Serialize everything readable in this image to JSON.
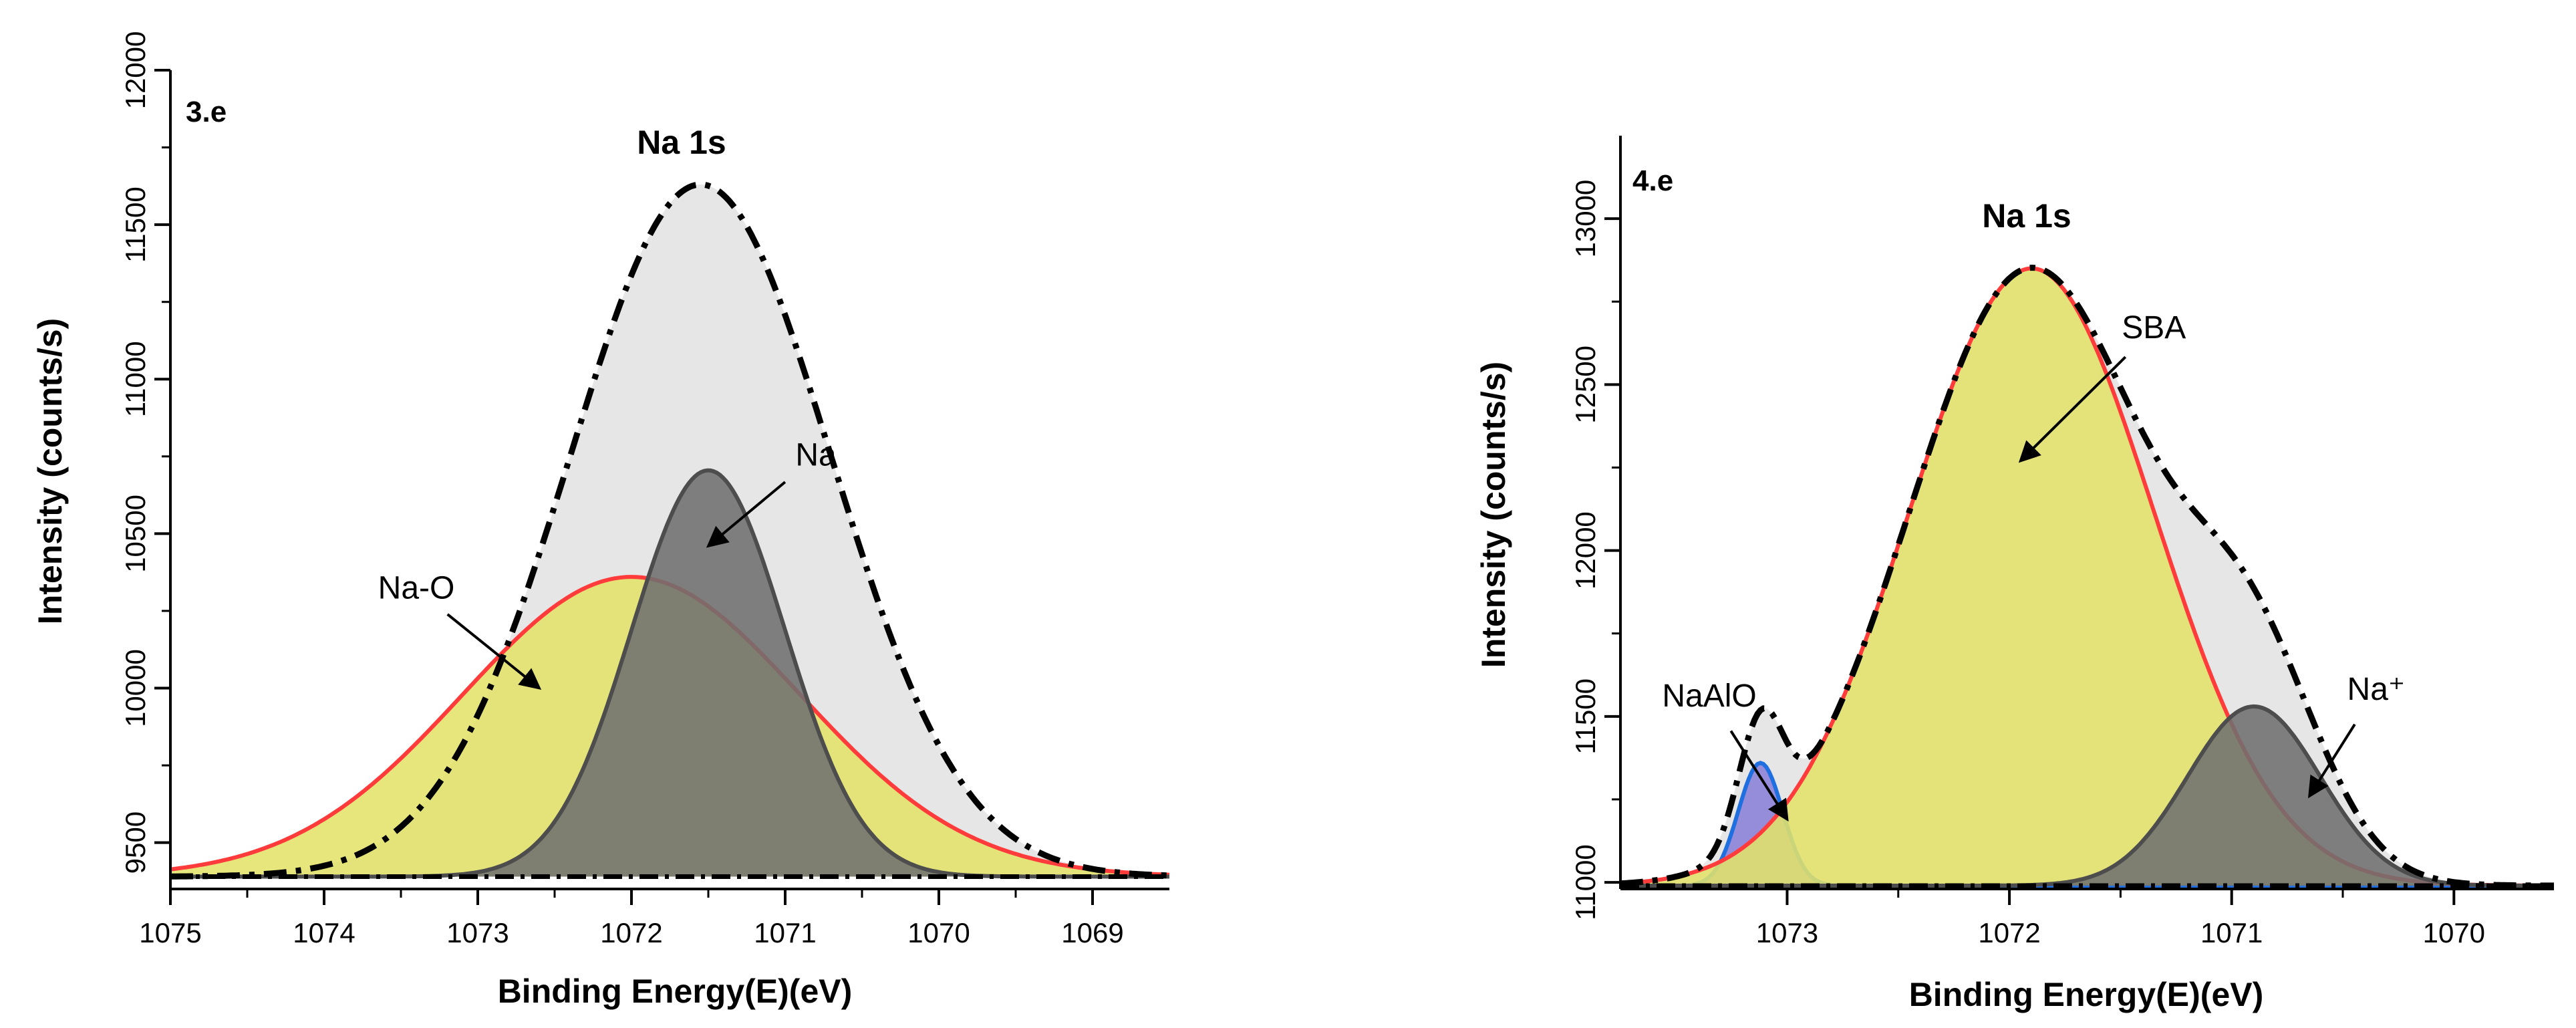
{
  "chart_data": [
    {
      "type": "area",
      "panel_label": "3.e",
      "title": "Na 1s",
      "xlabel": "Binding Energy(E)(eV)",
      "ylabel": "Intensity (counts/s)",
      "x_reversed": true,
      "xlim": [
        1075,
        1068.5
      ],
      "ylim": [
        9350,
        12000
      ],
      "xticks": [
        1075,
        1074,
        1073,
        1072,
        1071,
        1070,
        1069
      ],
      "xtick_labels": [
        "1075",
        "1074",
        "1073",
        "1072",
        "1071",
        "1070",
        "1069"
      ],
      "yticks": [
        9500,
        10000,
        10500,
        11000,
        11500,
        12000
      ],
      "ytick_labels": [
        "9500",
        "10000",
        "10500",
        "11000",
        "11500",
        "12000"
      ],
      "baseline": 9390,
      "envelope": {
        "name": "Envelope",
        "center": 1071.55,
        "amplitude": 2240,
        "sigma": 0.85,
        "fill": "#e6e6e6",
        "stroke": "#000000",
        "style": "dash-dot"
      },
      "components": [
        {
          "name": "Na-O",
          "center": 1072.0,
          "amplitude": 970,
          "sigma": 1.1,
          "fill": "#e3e36a",
          "stroke": "#ff3b3b"
        },
        {
          "name": "Na",
          "center": 1071.5,
          "amplitude": 1315,
          "sigma": 0.5,
          "fill": "#707070",
          "stroke": "#4d4d4d"
        }
      ],
      "annotations": [
        {
          "text": "Na-O",
          "target": "Na-O",
          "point_x": 1072.6,
          "point_y": 10000,
          "label_x": 1073.4,
          "label_y": 10290
        },
        {
          "text": "Na",
          "target": "Na",
          "point_x": 1071.5,
          "point_y": 10460,
          "label_x": 1070.8,
          "label_y": 10720
        }
      ]
    },
    {
      "type": "area",
      "panel_label": "4.e",
      "title": "Na 1s",
      "xlabel": "Binding Energy(E)(eV)",
      "ylabel": "Intensity (counts/s)",
      "x_reversed": true,
      "xlim": [
        1073.75,
        1069.55
      ],
      "ylim": [
        10980,
        13250
      ],
      "xticks": [
        1073,
        1072,
        1071,
        1070
      ],
      "xtick_labels": [
        "1073",
        "1072",
        "1071",
        "1070"
      ],
      "yticks": [
        11000,
        11500,
        12000,
        12500,
        13000
      ],
      "ytick_labels": [
        "11000",
        "11500",
        "12000",
        "12500",
        "13000"
      ],
      "baseline": 10990,
      "envelope": {
        "name": "Envelope",
        "fill": "#e6e6e6",
        "stroke": "#000000",
        "style": "dash-dot"
      },
      "components": [
        {
          "name": "NaAlO",
          "center": 1073.12,
          "amplitude": 370,
          "sigma": 0.1,
          "fill": "#8a80d8",
          "stroke": "#1f6fe0"
        },
        {
          "name": "SBA",
          "center": 1071.9,
          "amplitude": 1860,
          "sigma": 0.55,
          "fill": "#e3e36a",
          "stroke": "#ff3b3b"
        },
        {
          "name": "Na⁺",
          "center": 1070.9,
          "amplitude": 540,
          "sigma": 0.3,
          "fill": "#707070",
          "stroke": "#4d4d4d"
        }
      ],
      "annotations": [
        {
          "text": "NaAlO",
          "target": "NaAlO",
          "point_x": 1073.0,
          "point_y": 11190,
          "label_x": 1073.35,
          "label_y": 11530
        },
        {
          "text": "SBA",
          "target": "SBA",
          "point_x": 1071.95,
          "point_y": 12270,
          "label_x": 1071.35,
          "label_y": 12640
        },
        {
          "text": "Na⁺",
          "target": "Na⁺",
          "point_x": 1070.65,
          "point_y": 11260,
          "label_x": 1070.35,
          "label_y": 11550
        }
      ]
    }
  ]
}
